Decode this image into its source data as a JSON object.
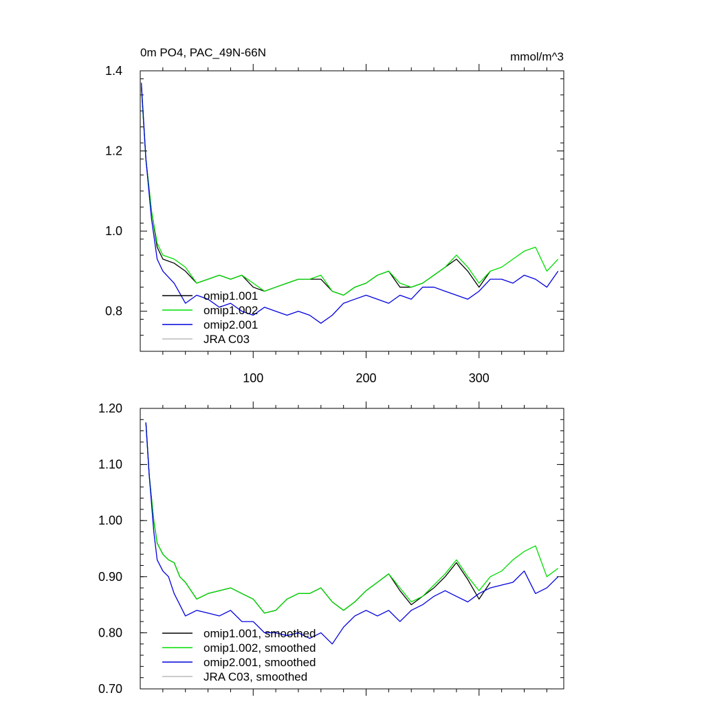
{
  "chart_data": [
    {
      "type": "line",
      "title": "0m PO4, PAC_49N-66N",
      "units": "mmol/m^3",
      "xlim": [
        0,
        375
      ],
      "ylim": [
        0.7,
        1.4
      ],
      "xticks": [
        100,
        200,
        300
      ],
      "xtick_labels": [
        "100",
        "200",
        "300"
      ],
      "yticks": [
        0.8,
        1.0,
        1.2,
        1.4
      ],
      "ytick_labels": [
        "0.8",
        "1.0",
        "1.2",
        "1.4"
      ],
      "legend_position": "bottom-left",
      "series": [
        {
          "name": "omip1.001",
          "color": "#000000",
          "x": [
            1,
            5,
            10,
            15,
            20,
            30,
            40,
            50,
            60,
            70,
            80,
            90,
            100,
            110,
            120,
            130,
            140,
            150,
            160,
            170,
            180,
            190,
            200,
            210,
            220,
            230,
            240,
            250,
            260,
            270,
            280,
            290,
            300,
            310
          ],
          "y": [
            1.36,
            1.18,
            1.05,
            0.96,
            0.93,
            0.92,
            0.9,
            0.87,
            0.88,
            0.89,
            0.88,
            0.89,
            0.86,
            0.85,
            0.86,
            0.87,
            0.88,
            0.88,
            0.88,
            0.85,
            0.84,
            0.86,
            0.87,
            0.89,
            0.9,
            0.86,
            0.86,
            0.87,
            0.89,
            0.91,
            0.93,
            0.9,
            0.86,
            0.9
          ]
        },
        {
          "name": "omip1.002",
          "color": "#00dd00",
          "x": [
            1,
            5,
            10,
            15,
            20,
            30,
            40,
            50,
            60,
            70,
            80,
            90,
            100,
            110,
            120,
            130,
            140,
            150,
            160,
            170,
            180,
            190,
            200,
            210,
            220,
            230,
            240,
            250,
            260,
            270,
            280,
            290,
            300,
            310,
            320,
            330,
            340,
            350,
            360,
            370
          ],
          "y": [
            1.36,
            1.18,
            1.05,
            0.97,
            0.94,
            0.93,
            0.91,
            0.87,
            0.88,
            0.89,
            0.88,
            0.89,
            0.87,
            0.85,
            0.86,
            0.87,
            0.88,
            0.88,
            0.89,
            0.85,
            0.84,
            0.86,
            0.87,
            0.89,
            0.9,
            0.87,
            0.86,
            0.87,
            0.89,
            0.91,
            0.94,
            0.91,
            0.87,
            0.9,
            0.91,
            0.93,
            0.95,
            0.96,
            0.9,
            0.93
          ]
        },
        {
          "name": "omip2.001",
          "color": "#0000dd",
          "x": [
            1,
            5,
            10,
            15,
            20,
            30,
            40,
            50,
            60,
            70,
            80,
            90,
            100,
            110,
            120,
            130,
            140,
            150,
            160,
            170,
            180,
            190,
            200,
            210,
            220,
            230,
            240,
            250,
            260,
            270,
            280,
            290,
            300,
            310,
            320,
            330,
            340,
            350,
            360,
            370
          ],
          "y": [
            1.37,
            1.18,
            1.03,
            0.93,
            0.9,
            0.87,
            0.82,
            0.84,
            0.83,
            0.81,
            0.82,
            0.8,
            0.79,
            0.81,
            0.8,
            0.79,
            0.8,
            0.79,
            0.77,
            0.79,
            0.82,
            0.83,
            0.84,
            0.83,
            0.82,
            0.84,
            0.83,
            0.86,
            0.86,
            0.85,
            0.84,
            0.83,
            0.85,
            0.88,
            0.88,
            0.87,
            0.89,
            0.88,
            0.86,
            0.9
          ]
        },
        {
          "name": "JRA C03",
          "color": "#bbbbbb",
          "x": [],
          "y": []
        }
      ]
    },
    {
      "type": "line",
      "xlim": [
        0,
        375
      ],
      "ylim": [
        0.7,
        1.2
      ],
      "xticks": [
        100,
        200,
        300
      ],
      "yticks": [
        0.7,
        0.8,
        0.9,
        1.0,
        1.1,
        1.2
      ],
      "ytick_labels": [
        "0.70",
        "0.80",
        "0.90",
        "1.00",
        "1.10",
        "1.20"
      ],
      "legend_position": "bottom-left",
      "series": [
        {
          "name": "omip1.001, smoothed",
          "color": "#000000",
          "x": [
            5,
            8,
            12,
            15,
            20,
            25,
            30,
            35,
            40,
            50,
            60,
            70,
            80,
            90,
            100,
            110,
            120,
            130,
            140,
            150,
            160,
            170,
            180,
            190,
            200,
            210,
            220,
            230,
            240,
            250,
            260,
            270,
            280,
            290,
            300,
            310
          ],
          "y": [
            1.175,
            1.08,
            1.0,
            0.96,
            0.94,
            0.93,
            0.925,
            0.9,
            0.89,
            0.86,
            0.87,
            0.875,
            0.88,
            0.87,
            0.86,
            0.835,
            0.84,
            0.86,
            0.87,
            0.87,
            0.88,
            0.855,
            0.84,
            0.855,
            0.875,
            0.89,
            0.905,
            0.875,
            0.85,
            0.865,
            0.88,
            0.9,
            0.925,
            0.895,
            0.86,
            0.89
          ]
        },
        {
          "name": "omip1.002, smoothed",
          "color": "#00dd00",
          "x": [
            5,
            8,
            12,
            15,
            20,
            25,
            30,
            35,
            40,
            50,
            60,
            70,
            80,
            90,
            100,
            110,
            120,
            130,
            140,
            150,
            160,
            170,
            180,
            190,
            200,
            210,
            220,
            230,
            240,
            250,
            260,
            270,
            280,
            290,
            300,
            310,
            320,
            330,
            340,
            350,
            360,
            370
          ],
          "y": [
            1.175,
            1.08,
            1.0,
            0.96,
            0.94,
            0.93,
            0.925,
            0.9,
            0.89,
            0.86,
            0.87,
            0.875,
            0.88,
            0.87,
            0.86,
            0.835,
            0.84,
            0.86,
            0.87,
            0.87,
            0.88,
            0.855,
            0.84,
            0.855,
            0.875,
            0.89,
            0.905,
            0.88,
            0.855,
            0.865,
            0.885,
            0.905,
            0.93,
            0.9,
            0.875,
            0.9,
            0.91,
            0.93,
            0.945,
            0.955,
            0.9,
            0.915
          ]
        },
        {
          "name": "omip2.001, smoothed",
          "color": "#0000dd",
          "x": [
            5,
            8,
            12,
            15,
            20,
            25,
            30,
            35,
            40,
            50,
            60,
            70,
            80,
            90,
            100,
            110,
            120,
            130,
            140,
            150,
            160,
            170,
            180,
            190,
            200,
            210,
            220,
            230,
            240,
            250,
            260,
            270,
            280,
            290,
            300,
            310,
            320,
            330,
            340,
            350,
            360,
            370
          ],
          "y": [
            1.175,
            1.08,
            0.98,
            0.93,
            0.91,
            0.9,
            0.87,
            0.85,
            0.83,
            0.84,
            0.835,
            0.83,
            0.84,
            0.82,
            0.82,
            0.8,
            0.8,
            0.795,
            0.8,
            0.79,
            0.8,
            0.78,
            0.81,
            0.83,
            0.84,
            0.83,
            0.84,
            0.82,
            0.84,
            0.85,
            0.865,
            0.875,
            0.865,
            0.855,
            0.87,
            0.88,
            0.885,
            0.89,
            0.91,
            0.87,
            0.88,
            0.9
          ]
        },
        {
          "name": "JRA C03, smoothed",
          "color": "#bbbbbb",
          "x": [],
          "y": []
        }
      ]
    }
  ]
}
